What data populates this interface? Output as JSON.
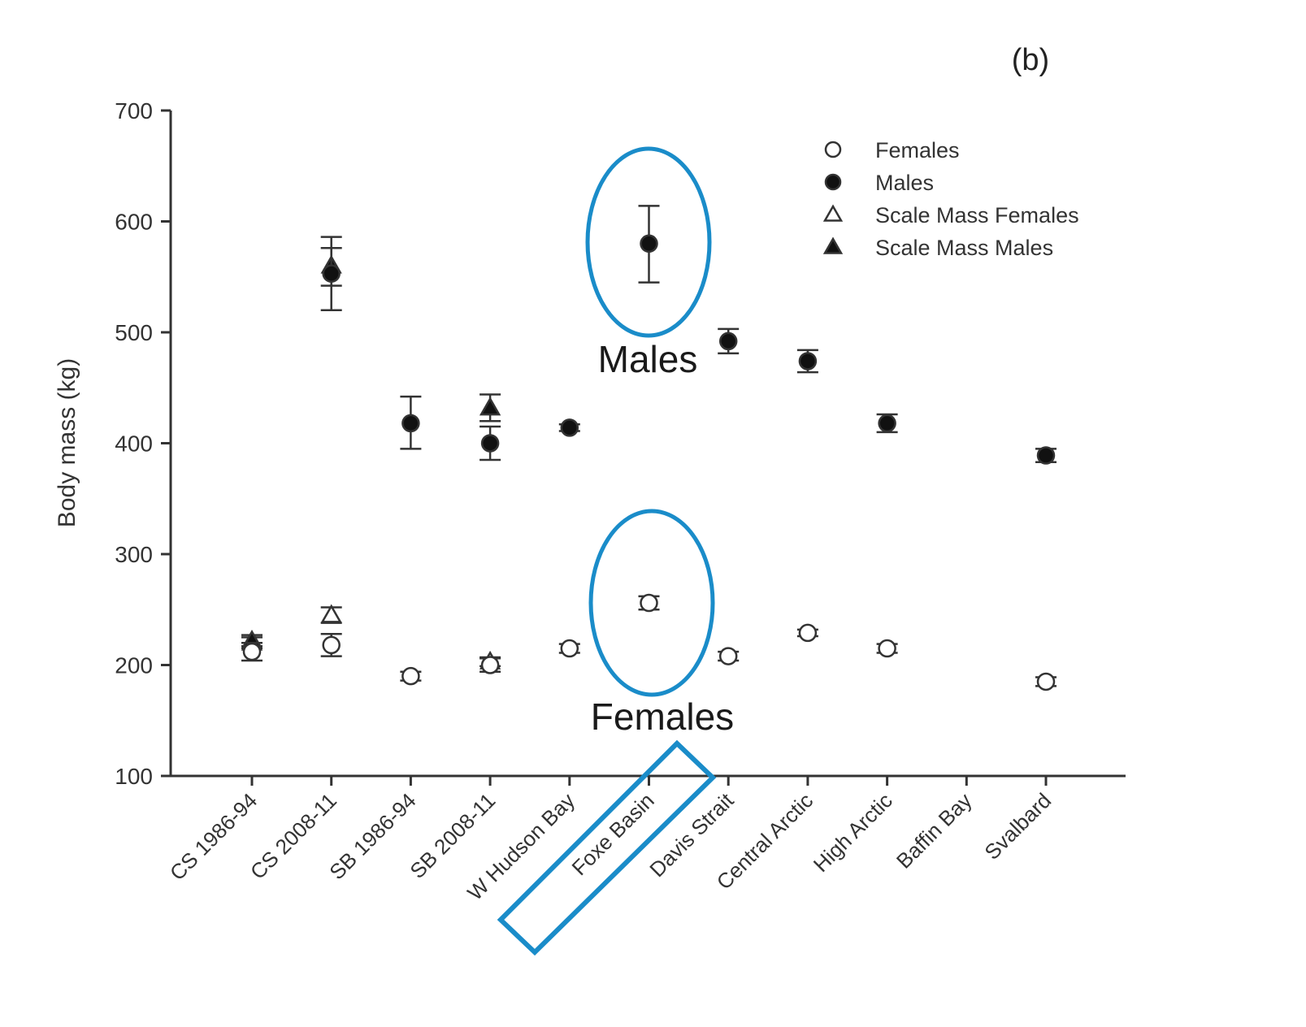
{
  "panel_label": "(b)",
  "chart_data": {
    "type": "scatter",
    "title": "",
    "xlabel": "",
    "ylabel": "Body mass (kg)",
    "ylim": [
      100,
      700
    ],
    "yticks": [
      100,
      200,
      300,
      400,
      500,
      600,
      700
    ],
    "categories": [
      "CS 1986-94",
      "CS 2008-11",
      "SB 1986-94",
      "SB 2008-11",
      "W Hudson Bay",
      "Foxe Basin",
      "Davis Strait",
      "Central Arctic",
      "High Arctic",
      "Baffin Bay",
      "Svalbard"
    ],
    "series": [
      {
        "name": "Females",
        "marker": "open-circle",
        "values": [
          212,
          218,
          190,
          200,
          215,
          256,
          208,
          229,
          215,
          null,
          185
        ],
        "err_low": [
          204,
          208,
          186,
          194,
          211,
          250,
          204,
          226,
          211,
          null,
          181
        ],
        "err_high": [
          220,
          228,
          194,
          206,
          219,
          262,
          212,
          232,
          219,
          null,
          189
        ]
      },
      {
        "name": "Males",
        "marker": "filled-circle",
        "values": [
          null,
          553,
          418,
          400,
          414,
          580,
          492,
          474,
          418,
          null,
          389
        ],
        "err_low": [
          null,
          520,
          395,
          385,
          411,
          545,
          481,
          464,
          410,
          null,
          383
        ],
        "err_high": [
          null,
          586,
          442,
          415,
          417,
          614,
          503,
          484,
          426,
          null,
          395
        ]
      },
      {
        "name": "Scale Mass Females",
        "marker": "open-triangle",
        "values": [
          220,
          245,
          null,
          203,
          null,
          null,
          null,
          null,
          null,
          null,
          null
        ],
        "err_low": [
          215,
          238,
          null,
          199,
          null,
          null,
          null,
          null,
          null,
          null,
          null
        ],
        "err_high": [
          225,
          252,
          null,
          207,
          null,
          null,
          null,
          null,
          null,
          null,
          null
        ]
      },
      {
        "name": "Scale Mass Males",
        "marker": "filled-triangle",
        "values": [
          222,
          560,
          null,
          432,
          null,
          null,
          null,
          null,
          null,
          null,
          null
        ],
        "err_low": [
          217,
          542,
          null,
          420,
          null,
          null,
          null,
          null,
          null,
          null,
          null
        ],
        "err_high": [
          227,
          576,
          null,
          444,
          null,
          null,
          null,
          null,
          null,
          null,
          null
        ]
      }
    ],
    "legend_position": "top-right"
  },
  "annotations": {
    "males_label": "Males",
    "females_label": "Females",
    "highlight_category": "Foxe Basin",
    "highlight_color": "#1a8cc9"
  }
}
